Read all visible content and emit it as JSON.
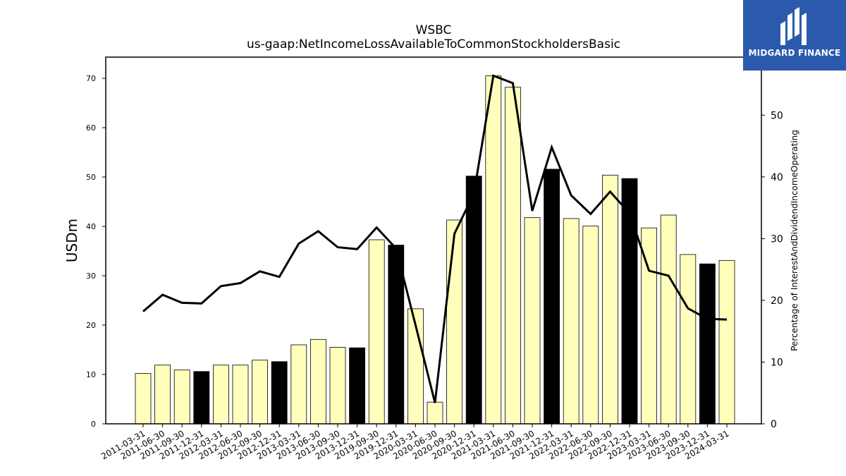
{
  "header": {
    "title": "WSBC",
    "subtitle": "us-gaap:NetIncomeLossAvailableToCommonStockholdersBasic"
  },
  "brand": {
    "name": "MIDGARD FINANCE",
    "color": "#2b5aad",
    "icon": "midgard-logo-icon"
  },
  "chart_data": {
    "type": "bar",
    "title": "WSBC",
    "subtitle": "us-gaap:NetIncomeLossAvailableToCommonStockholdersBasic",
    "ylabel": "USDm",
    "y2label": "Percentage of InterestAndDividendIncomeOperating",
    "ylim": [
      0,
      74.3
    ],
    "y2lim": [
      0,
      59.4
    ],
    "yticks": [
      0,
      10,
      20,
      30,
      40,
      50,
      60,
      70
    ],
    "y2ticks": [
      0,
      10,
      20,
      30,
      40,
      50
    ],
    "grid": false,
    "bar_color": "#ffffbb",
    "q4_bar_color": "#000000",
    "line_color": "#000000",
    "categories": [
      "2011-03-31",
      "2011-06-30",
      "2011-09-30",
      "2011-12-31",
      "2012-03-31",
      "2012-06-30",
      "2012-09-30",
      "2012-12-31",
      "2013-03-31",
      "2013-06-30",
      "2013-09-30",
      "2013-12-31",
      "2019-09-30",
      "2019-12-31",
      "2020-03-31",
      "2020-06-30",
      "2020-09-30",
      "2020-12-31",
      "2021-03-31",
      "2021-06-30",
      "2021-09-30",
      "2021-12-31",
      "2022-03-31",
      "2022-06-30",
      "2022-09-30",
      "2022-12-31",
      "2023-03-31",
      "2023-06-30",
      "2023-09-30",
      "2023-12-31",
      "2024-03-31"
    ],
    "series": [
      {
        "type": "bar",
        "axis": "left",
        "values": [
          10.2,
          11.9,
          10.9,
          10.6,
          11.9,
          11.9,
          12.9,
          12.6,
          16.0,
          17.1,
          15.5,
          15.4,
          37.3,
          36.2,
          23.3,
          4.4,
          41.3,
          50.2,
          70.5,
          68.2,
          41.8,
          51.6,
          41.6,
          40.1,
          50.4,
          49.7,
          39.7,
          42.3,
          34.3,
          32.4,
          33.1
        ]
      },
      {
        "type": "line",
        "axis": "right",
        "values": [
          18.2,
          20.9,
          19.6,
          19.5,
          22.3,
          22.8,
          24.7,
          23.8,
          29.2,
          31.2,
          28.6,
          28.3,
          31.8,
          28.4,
          16.0,
          3.4,
          30.8,
          37.3,
          56.4,
          55.2,
          34.5,
          44.8,
          37.0,
          34.0,
          37.6,
          34.1,
          24.8,
          24.0,
          18.7,
          17.0,
          16.9
        ]
      }
    ]
  }
}
